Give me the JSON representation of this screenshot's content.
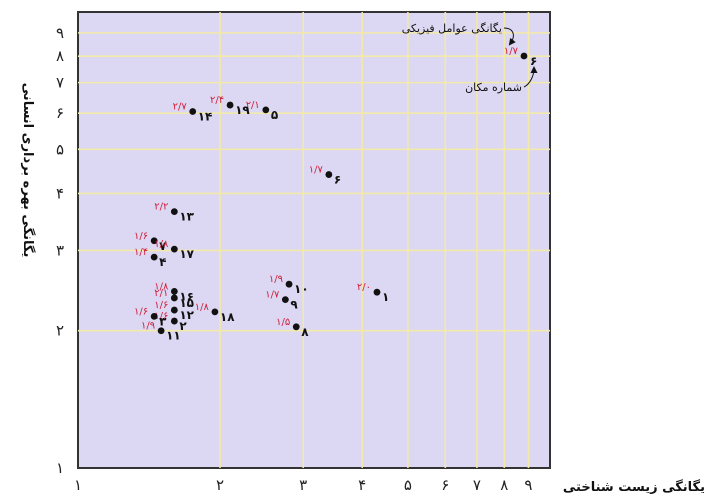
{
  "chart_data": {
    "type": "scatter",
    "xlabel": "یگانگی زیست شناختی",
    "ylabel": "یگانگی بهره برداری انسانی",
    "x_ticks": [
      "۱",
      "۲",
      "۳",
      "۴",
      "۵",
      "۶",
      "۷",
      "۸",
      "۹"
    ],
    "y_ticks": [
      "۱",
      "۲",
      "۳",
      "۴",
      "۵",
      "۶",
      "۷",
      "۸",
      "۹"
    ],
    "xlim": [
      1,
      10
    ],
    "ylim": [
      1,
      10
    ],
    "x_scale": "log",
    "y_scale": "log",
    "grid": true,
    "legend": {
      "sample_value": "۱/۷",
      "sample_id": "۶",
      "value_label": "یگانگی عوامل فیزیکی",
      "id_label": "شماره مکان"
    },
    "points": [
      {
        "id": "۱",
        "x": 4.3,
        "y": 2.43,
        "value": "۲/۰"
      },
      {
        "id": "۲",
        "x": 1.6,
        "y": 2.1,
        "value": "۱/۶"
      },
      {
        "id": "۳",
        "x": 1.45,
        "y": 2.15,
        "value": "۱/۶"
      },
      {
        "id": "۴",
        "x": 1.45,
        "y": 2.9,
        "value": "۱/۴"
      },
      {
        "id": "۵",
        "x": 2.5,
        "y": 6.1,
        "value": "۲/۱"
      },
      {
        "id": "۶",
        "x": 3.4,
        "y": 4.4,
        "value": "۱/۷"
      },
      {
        "id": "۷",
        "x": 1.45,
        "y": 3.15,
        "value": "۱/۶"
      },
      {
        "id": "۸",
        "x": 2.9,
        "y": 2.04,
        "value": "۱/۵"
      },
      {
        "id": "۹",
        "x": 2.75,
        "y": 2.34,
        "value": "۱/۷"
      },
      {
        "id": "۱۰",
        "x": 2.8,
        "y": 2.53,
        "value": "۱/۹"
      },
      {
        "id": "۱۱",
        "x": 1.5,
        "y": 2.0,
        "value": "۱/۹"
      },
      {
        "id": "۱۲",
        "x": 1.6,
        "y": 2.22,
        "value": "۱/۶"
      },
      {
        "id": "۱۳",
        "x": 1.6,
        "y": 3.65,
        "value": "۲/۲"
      },
      {
        "id": "۱۴",
        "x": 1.75,
        "y": 6.05,
        "value": "۲/۷"
      },
      {
        "id": "۱۵",
        "x": 1.6,
        "y": 2.36,
        "value": "۲/۱"
      },
      {
        "id": "۱۶",
        "x": 1.6,
        "y": 2.44,
        "value": "۱/۸"
      },
      {
        "id": "۱۷",
        "x": 1.6,
        "y": 3.02,
        "value": "۱/۸"
      },
      {
        "id": "۱۸",
        "x": 1.95,
        "y": 2.2,
        "value": "۱/۸"
      },
      {
        "id": "۱۹",
        "x": 2.1,
        "y": 6.25,
        "value": "۲/۴"
      }
    ]
  }
}
